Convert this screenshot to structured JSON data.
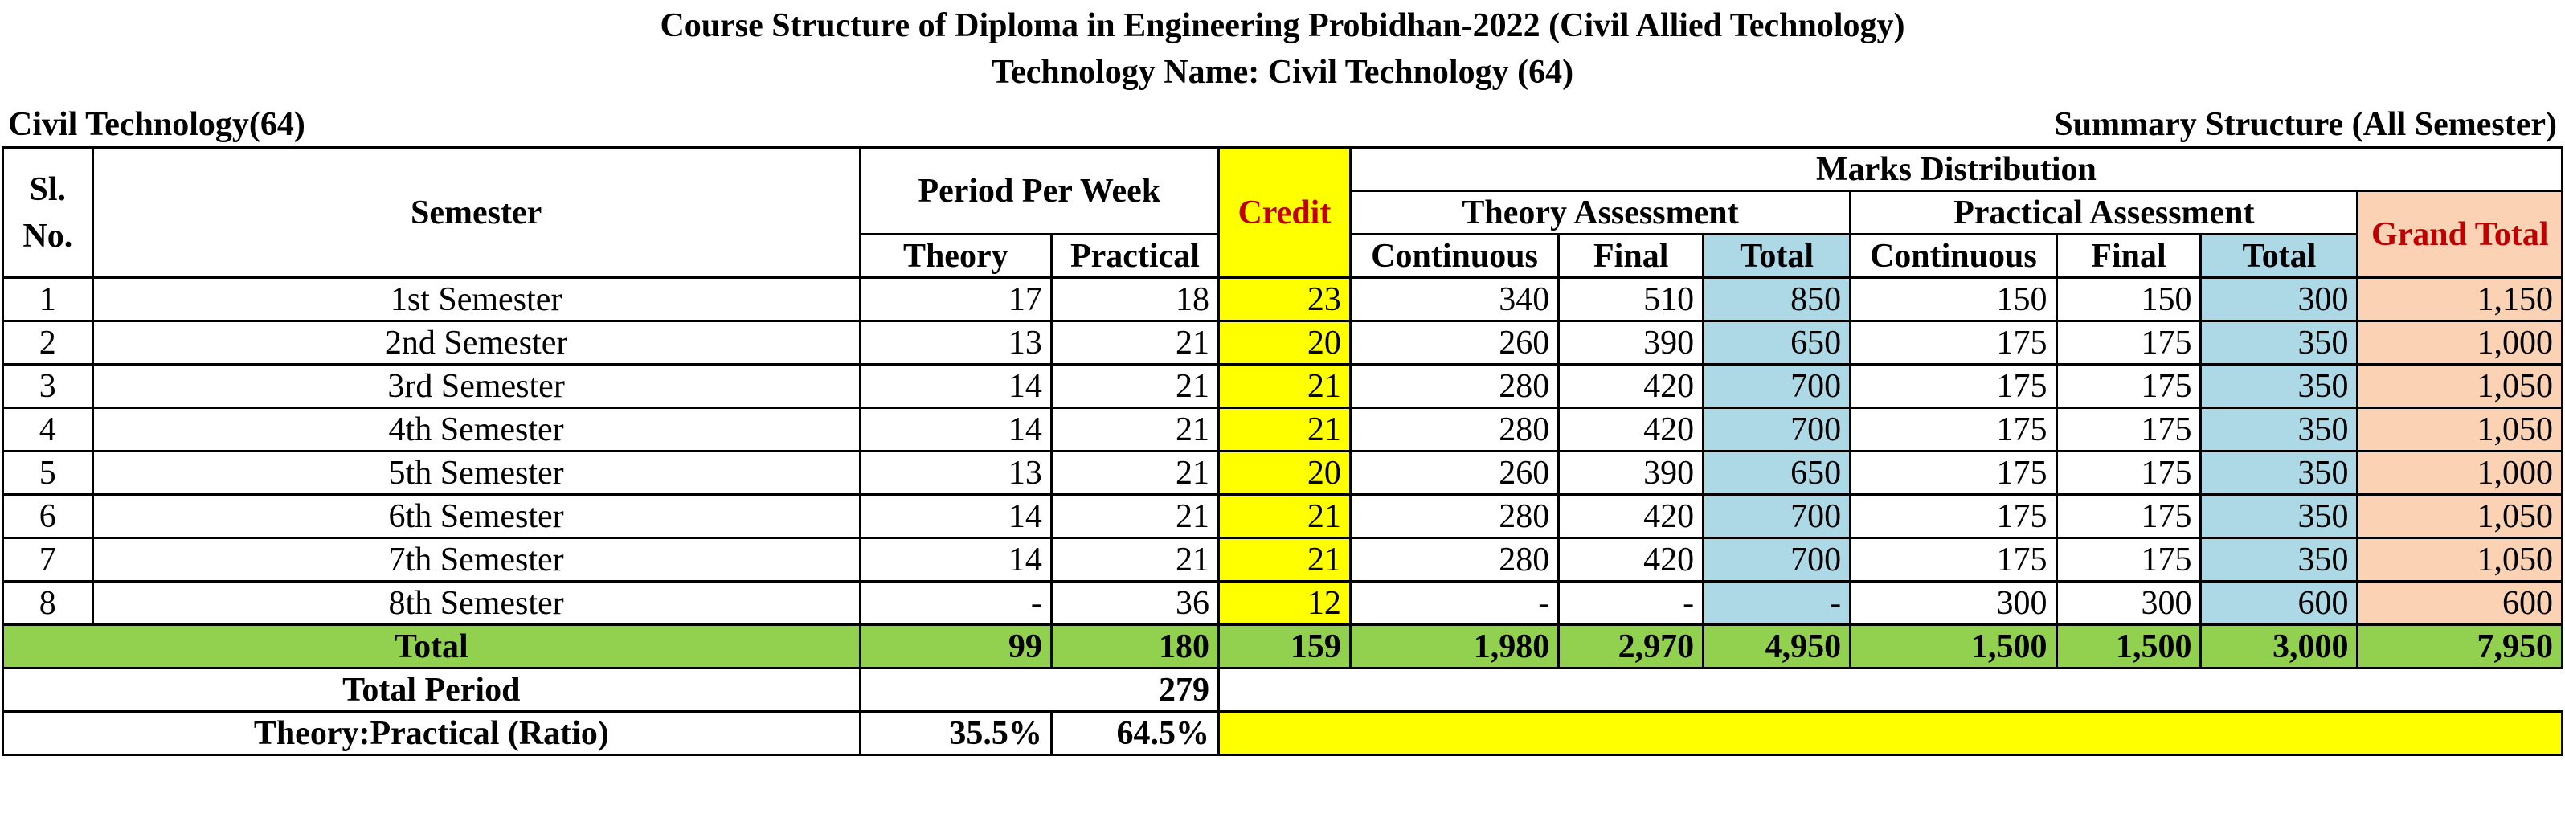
{
  "header": {
    "title": "Course Structure of Diploma in Engineering Probidhan-2022 (Civil Allied Technology)",
    "subtitle": "Technology Name: Civil Technology (64)",
    "left_label": "Civil Technology(64)",
    "right_label": "Summary Structure (All Semester)"
  },
  "columns": {
    "sl": "Sl. No.",
    "semester": "Semester",
    "period_per_week": "Period Per Week",
    "credit": "Credit",
    "marks_distribution": "Marks Distribution",
    "theory_assessment": "Theory Assessment",
    "practical_assessment": "Practical Assessment",
    "grand_total": "Grand Total",
    "theory": "Theory",
    "practical": "Practical",
    "continuous": "Continuous",
    "final": "Final",
    "total": "Total"
  },
  "rows": [
    {
      "sl": "1",
      "semester": "1st Semester",
      "theory": "17",
      "practical": "18",
      "credit": "23",
      "t_cont": "340",
      "t_final": "510",
      "t_total": "850",
      "p_cont": "150",
      "p_final": "150",
      "p_total": "300",
      "grand": "1,150"
    },
    {
      "sl": "2",
      "semester": "2nd Semester",
      "theory": "13",
      "practical": "21",
      "credit": "20",
      "t_cont": "260",
      "t_final": "390",
      "t_total": "650",
      "p_cont": "175",
      "p_final": "175",
      "p_total": "350",
      "grand": "1,000"
    },
    {
      "sl": "3",
      "semester": "3rd Semester",
      "theory": "14",
      "practical": "21",
      "credit": "21",
      "t_cont": "280",
      "t_final": "420",
      "t_total": "700",
      "p_cont": "175",
      "p_final": "175",
      "p_total": "350",
      "grand": "1,050"
    },
    {
      "sl": "4",
      "semester": "4th Semester",
      "theory": "14",
      "practical": "21",
      "credit": "21",
      "t_cont": "280",
      "t_final": "420",
      "t_total": "700",
      "p_cont": "175",
      "p_final": "175",
      "p_total": "350",
      "grand": "1,050"
    },
    {
      "sl": "5",
      "semester": "5th Semester",
      "theory": "13",
      "practical": "21",
      "credit": "20",
      "t_cont": "260",
      "t_final": "390",
      "t_total": "650",
      "p_cont": "175",
      "p_final": "175",
      "p_total": "350",
      "grand": "1,000"
    },
    {
      "sl": "6",
      "semester": "6th Semester",
      "theory": "14",
      "practical": "21",
      "credit": "21",
      "t_cont": "280",
      "t_final": "420",
      "t_total": "700",
      "p_cont": "175",
      "p_final": "175",
      "p_total": "350",
      "grand": "1,050"
    },
    {
      "sl": "7",
      "semester": "7th Semester",
      "theory": "14",
      "practical": "21",
      "credit": "21",
      "t_cont": "280",
      "t_final": "420",
      "t_total": "700",
      "p_cont": "175",
      "p_final": "175",
      "p_total": "350",
      "grand": "1,050"
    },
    {
      "sl": "8",
      "semester": "8th Semester",
      "theory": "-",
      "practical": "36",
      "credit": "12",
      "t_cont": "-",
      "t_final": "-",
      "t_total": "-",
      "p_cont": "300",
      "p_final": "300",
      "p_total": "600",
      "grand": "600"
    }
  ],
  "totals": {
    "label": "Total",
    "theory": "99",
    "practical": "180",
    "credit": "159",
    "t_cont": "1,980",
    "t_final": "2,970",
    "t_total": "4,950",
    "p_cont": "1,500",
    "p_final": "1,500",
    "p_total": "3,000",
    "grand": "7,950"
  },
  "total_period": {
    "label": "Total Period",
    "value": "279"
  },
  "ratio": {
    "label": "Theory:Practical (Ratio)",
    "theory": "35.5%",
    "practical": "64.5%"
  },
  "colors": {
    "credit": "#ffff00",
    "total_cols": "#add8e6",
    "grand_total": "#fbd2b4",
    "totals_row": "#92d050"
  }
}
